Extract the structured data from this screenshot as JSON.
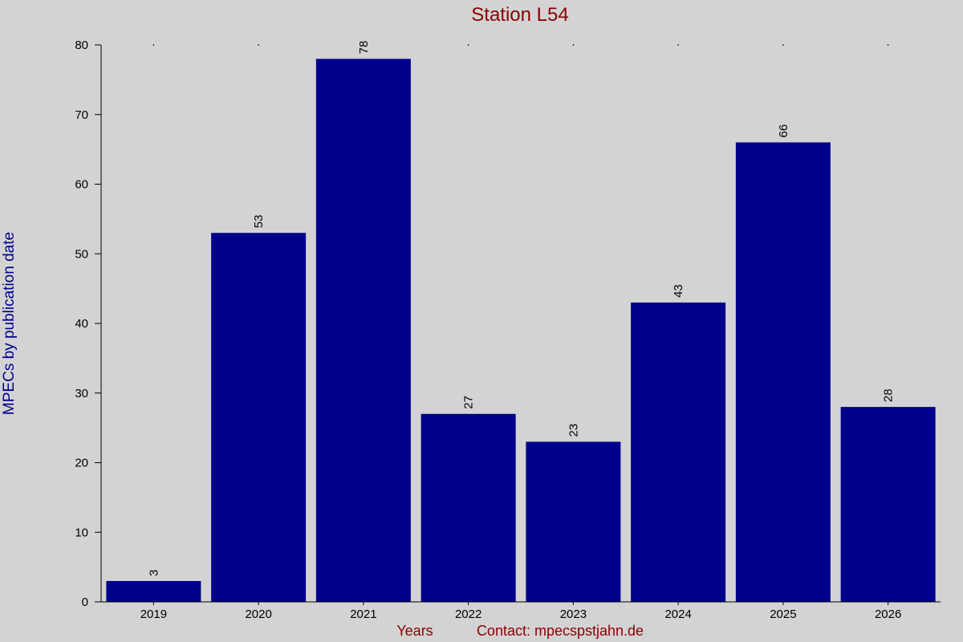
{
  "chart_data": {
    "type": "bar",
    "title": "Station L54",
    "xlabel": "Years",
    "footer_note": "Contact: mpecspstjahn.de",
    "ylabel": "MPECs by publication date",
    "categories": [
      "2019",
      "2020",
      "2021",
      "2022",
      "2023",
      "2024",
      "2025",
      "2026"
    ],
    "values": [
      3,
      53,
      78,
      27,
      23,
      43,
      66,
      28
    ],
    "ylim": [
      0,
      80
    ],
    "yticks": [
      0,
      10,
      20,
      30,
      40,
      50,
      60,
      70,
      80
    ],
    "bar_color": "#00008b",
    "background": "#d3d3d3",
    "title_color": "#8b0000",
    "ylabel_color": "#00008b",
    "grid": false,
    "legend": "none"
  }
}
